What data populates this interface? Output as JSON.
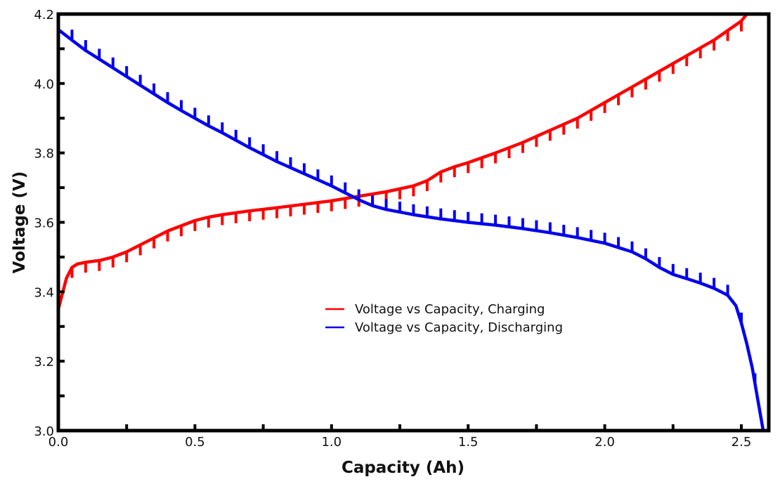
{
  "chart_data": {
    "type": "line",
    "title": "",
    "xlabel": "Capacity (Ah)",
    "ylabel": "Voltage (V)",
    "xlim": [
      0.0,
      2.6
    ],
    "ylim": [
      3.0,
      4.2
    ],
    "grid": false,
    "legend_position": "center",
    "x_ticks": [
      {
        "value": 0.0,
        "label": "0.0"
      },
      {
        "value": 0.25,
        "label": ""
      },
      {
        "value": 0.5,
        "label": "0.5"
      },
      {
        "value": 0.75,
        "label": ""
      },
      {
        "value": 1.0,
        "label": "1.0"
      },
      {
        "value": 1.25,
        "label": ""
      },
      {
        "value": 1.5,
        "label": "1.5"
      },
      {
        "value": 1.75,
        "label": ""
      },
      {
        "value": 2.0,
        "label": "2.0"
      },
      {
        "value": 2.25,
        "label": ""
      },
      {
        "value": 2.5,
        "label": "2.5"
      }
    ],
    "y_ticks": [
      {
        "value": 3.0,
        "label": "3.0"
      },
      {
        "value": 3.1,
        "label": ""
      },
      {
        "value": 3.2,
        "label": "3.2"
      },
      {
        "value": 3.3,
        "label": ""
      },
      {
        "value": 3.4,
        "label": "3.4"
      },
      {
        "value": 3.5,
        "label": ""
      },
      {
        "value": 3.6,
        "label": "3.6"
      },
      {
        "value": 3.7,
        "label": ""
      },
      {
        "value": 3.8,
        "label": "3.8"
      },
      {
        "value": 3.9,
        "label": ""
      },
      {
        "value": 4.0,
        "label": "4.0"
      },
      {
        "value": 4.1,
        "label": ""
      },
      {
        "value": 4.2,
        "label": "4.2"
      }
    ],
    "series": [
      {
        "name": "Voltage vs Capacity, Charging",
        "color": "#ff0000",
        "pulse_direction": "down",
        "pulse_size_v": 0.03,
        "pulse_interval_ah": 0.05,
        "x": [
          0.0,
          0.01,
          0.02,
          0.03,
          0.05,
          0.07,
          0.1,
          0.15,
          0.2,
          0.25,
          0.3,
          0.35,
          0.4,
          0.45,
          0.5,
          0.55,
          0.6,
          0.7,
          0.8,
          0.9,
          1.0,
          1.1,
          1.2,
          1.3,
          1.35,
          1.4,
          1.45,
          1.5,
          1.6,
          1.7,
          1.8,
          1.9,
          2.0,
          2.1,
          2.2,
          2.3,
          2.4,
          2.5,
          2.52
        ],
        "y": [
          3.35,
          3.38,
          3.41,
          3.44,
          3.47,
          3.48,
          3.485,
          3.49,
          3.5,
          3.515,
          3.535,
          3.555,
          3.575,
          3.59,
          3.605,
          3.615,
          3.622,
          3.633,
          3.642,
          3.652,
          3.662,
          3.675,
          3.688,
          3.705,
          3.72,
          3.745,
          3.76,
          3.772,
          3.8,
          3.83,
          3.865,
          3.9,
          3.945,
          3.99,
          4.035,
          4.08,
          4.125,
          4.18,
          4.2
        ]
      },
      {
        "name": "Voltage vs Capacity, Discharging",
        "color": "#0000ee",
        "pulse_direction": "up",
        "pulse_size_v": 0.03,
        "pulse_interval_ah": 0.05,
        "x": [
          0.0,
          0.05,
          0.1,
          0.15,
          0.2,
          0.25,
          0.3,
          0.35,
          0.4,
          0.45,
          0.5,
          0.55,
          0.6,
          0.7,
          0.8,
          0.9,
          1.0,
          1.05,
          1.1,
          1.15,
          1.2,
          1.3,
          1.4,
          1.5,
          1.6,
          1.7,
          1.8,
          1.9,
          2.0,
          2.1,
          2.15,
          2.2,
          2.25,
          2.3,
          2.35,
          2.4,
          2.45,
          2.48,
          2.5,
          2.52,
          2.54,
          2.56,
          2.58
        ],
        "y": [
          4.155,
          4.125,
          4.095,
          4.07,
          4.045,
          4.02,
          3.995,
          3.97,
          3.945,
          3.922,
          3.9,
          3.878,
          3.858,
          3.815,
          3.775,
          3.74,
          3.705,
          3.685,
          3.665,
          3.648,
          3.637,
          3.622,
          3.61,
          3.6,
          3.592,
          3.582,
          3.57,
          3.556,
          3.54,
          3.515,
          3.495,
          3.47,
          3.45,
          3.438,
          3.425,
          3.41,
          3.39,
          3.36,
          3.31,
          3.25,
          3.18,
          3.09,
          3.0
        ]
      }
    ]
  }
}
